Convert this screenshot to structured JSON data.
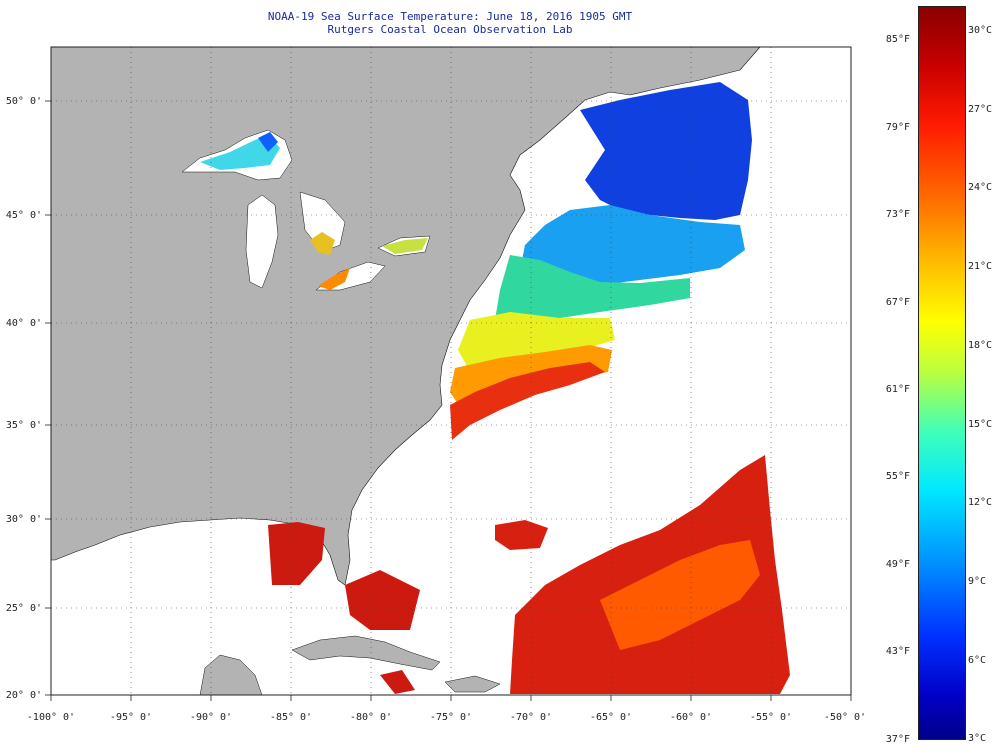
{
  "title": {
    "line1": "NOAA-19 Sea Surface Temperature:  June 18, 2016 1905 GMT",
    "line2": "Rutgers Coastal Ocean Observation Lab"
  },
  "map": {
    "lon_labels": [
      "-100° 0'",
      "-95° 0'",
      "-90° 0'",
      "-85° 0'",
      "-80° 0'",
      "-75° 0'",
      "-70° 0'",
      "-65° 0'",
      "-60° 0'",
      "-55° 0'",
      "-50° 0'"
    ],
    "lat_labels": [
      "50° 0'",
      "45° 0'",
      "40° 0'",
      "35° 0'",
      "30° 0'",
      "25° 0'",
      "20° 0'"
    ],
    "lon_range": [
      -100,
      -50
    ],
    "lat_range": [
      20,
      52.5
    ],
    "colors": {
      "land": "#b3b3b3",
      "ocean_no_data": "#ffffff",
      "grid": "#444444"
    }
  },
  "colorbar": {
    "fahrenheit": [
      "85°F",
      "79°F",
      "73°F",
      "67°F",
      "61°F",
      "55°F",
      "49°F",
      "43°F",
      "37°F"
    ],
    "celsius": [
      "30°C",
      "27°C",
      "24°C",
      "21°C",
      "18°C",
      "15°C",
      "12°C",
      "9°C",
      "6°C",
      "3°C"
    ]
  }
}
